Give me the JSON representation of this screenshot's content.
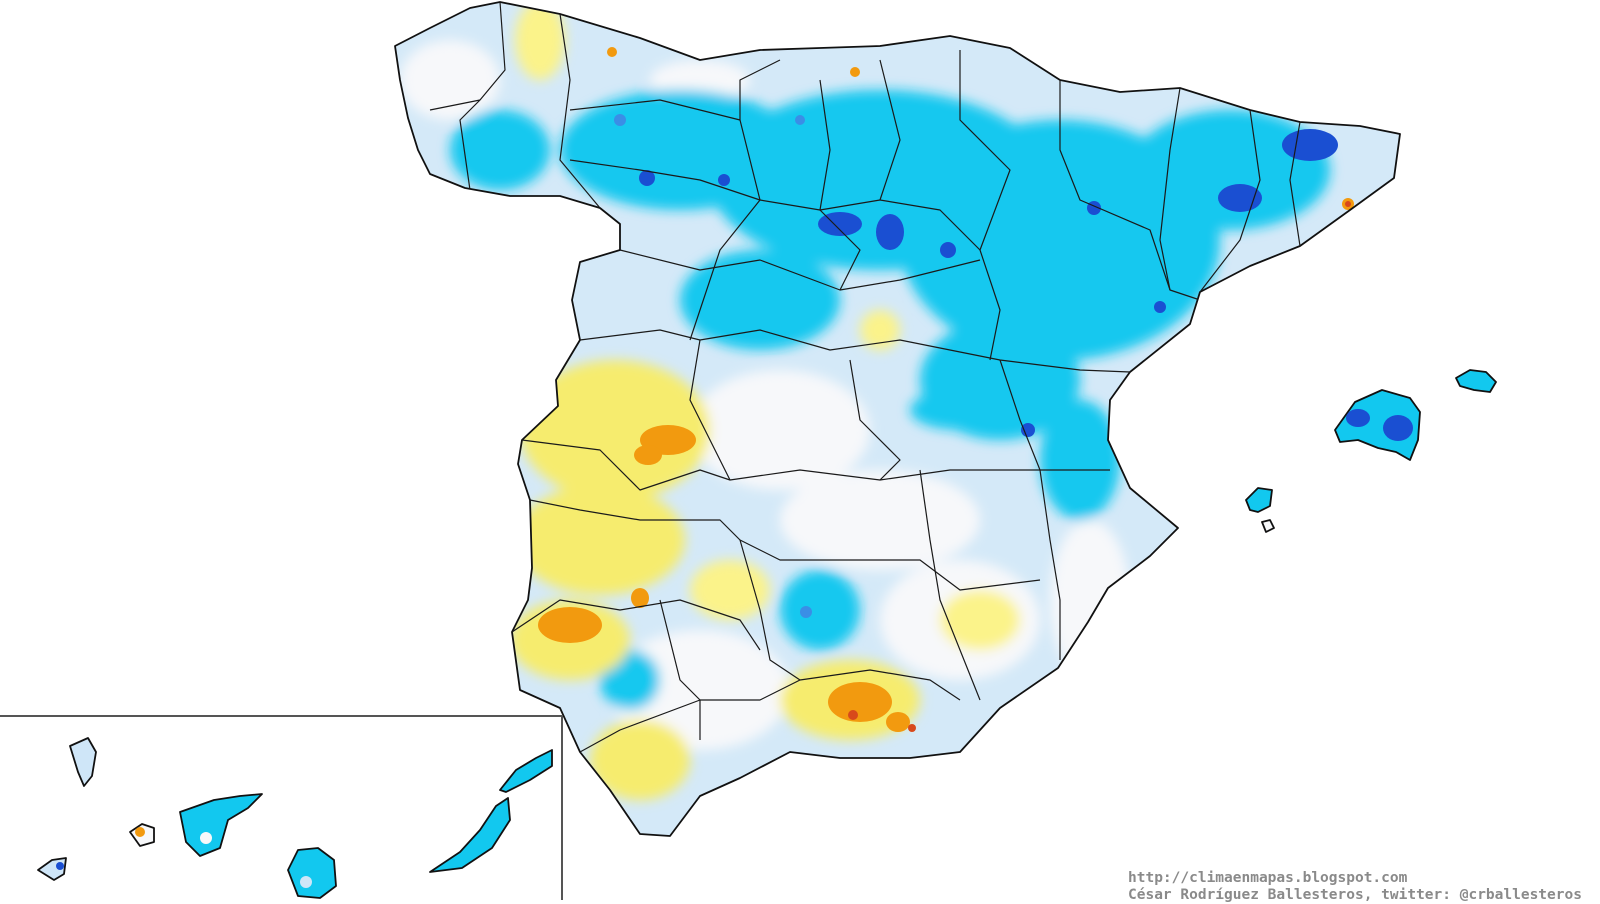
{
  "map": {
    "region": "Spain",
    "inset": "Canary Islands",
    "colors": {
      "land_base": "#d4e9f8",
      "near_normal": "#f7f8fa",
      "light_blue": "#cfe6f8",
      "cyan": "#12c8ef",
      "blue": "#3a8ee6",
      "dark_blue": "#1a4fd2",
      "light_yellow": "#fbf38a",
      "yellow": "#f6ec6e",
      "orange": "#f29a0f",
      "red": "#d8491b",
      "border": "#1a1a1a"
    }
  },
  "credits": {
    "url": "http://climaenmapas.blogspot.com",
    "author": "César Rodríguez Ballesteros, twitter: @crballesteros"
  }
}
